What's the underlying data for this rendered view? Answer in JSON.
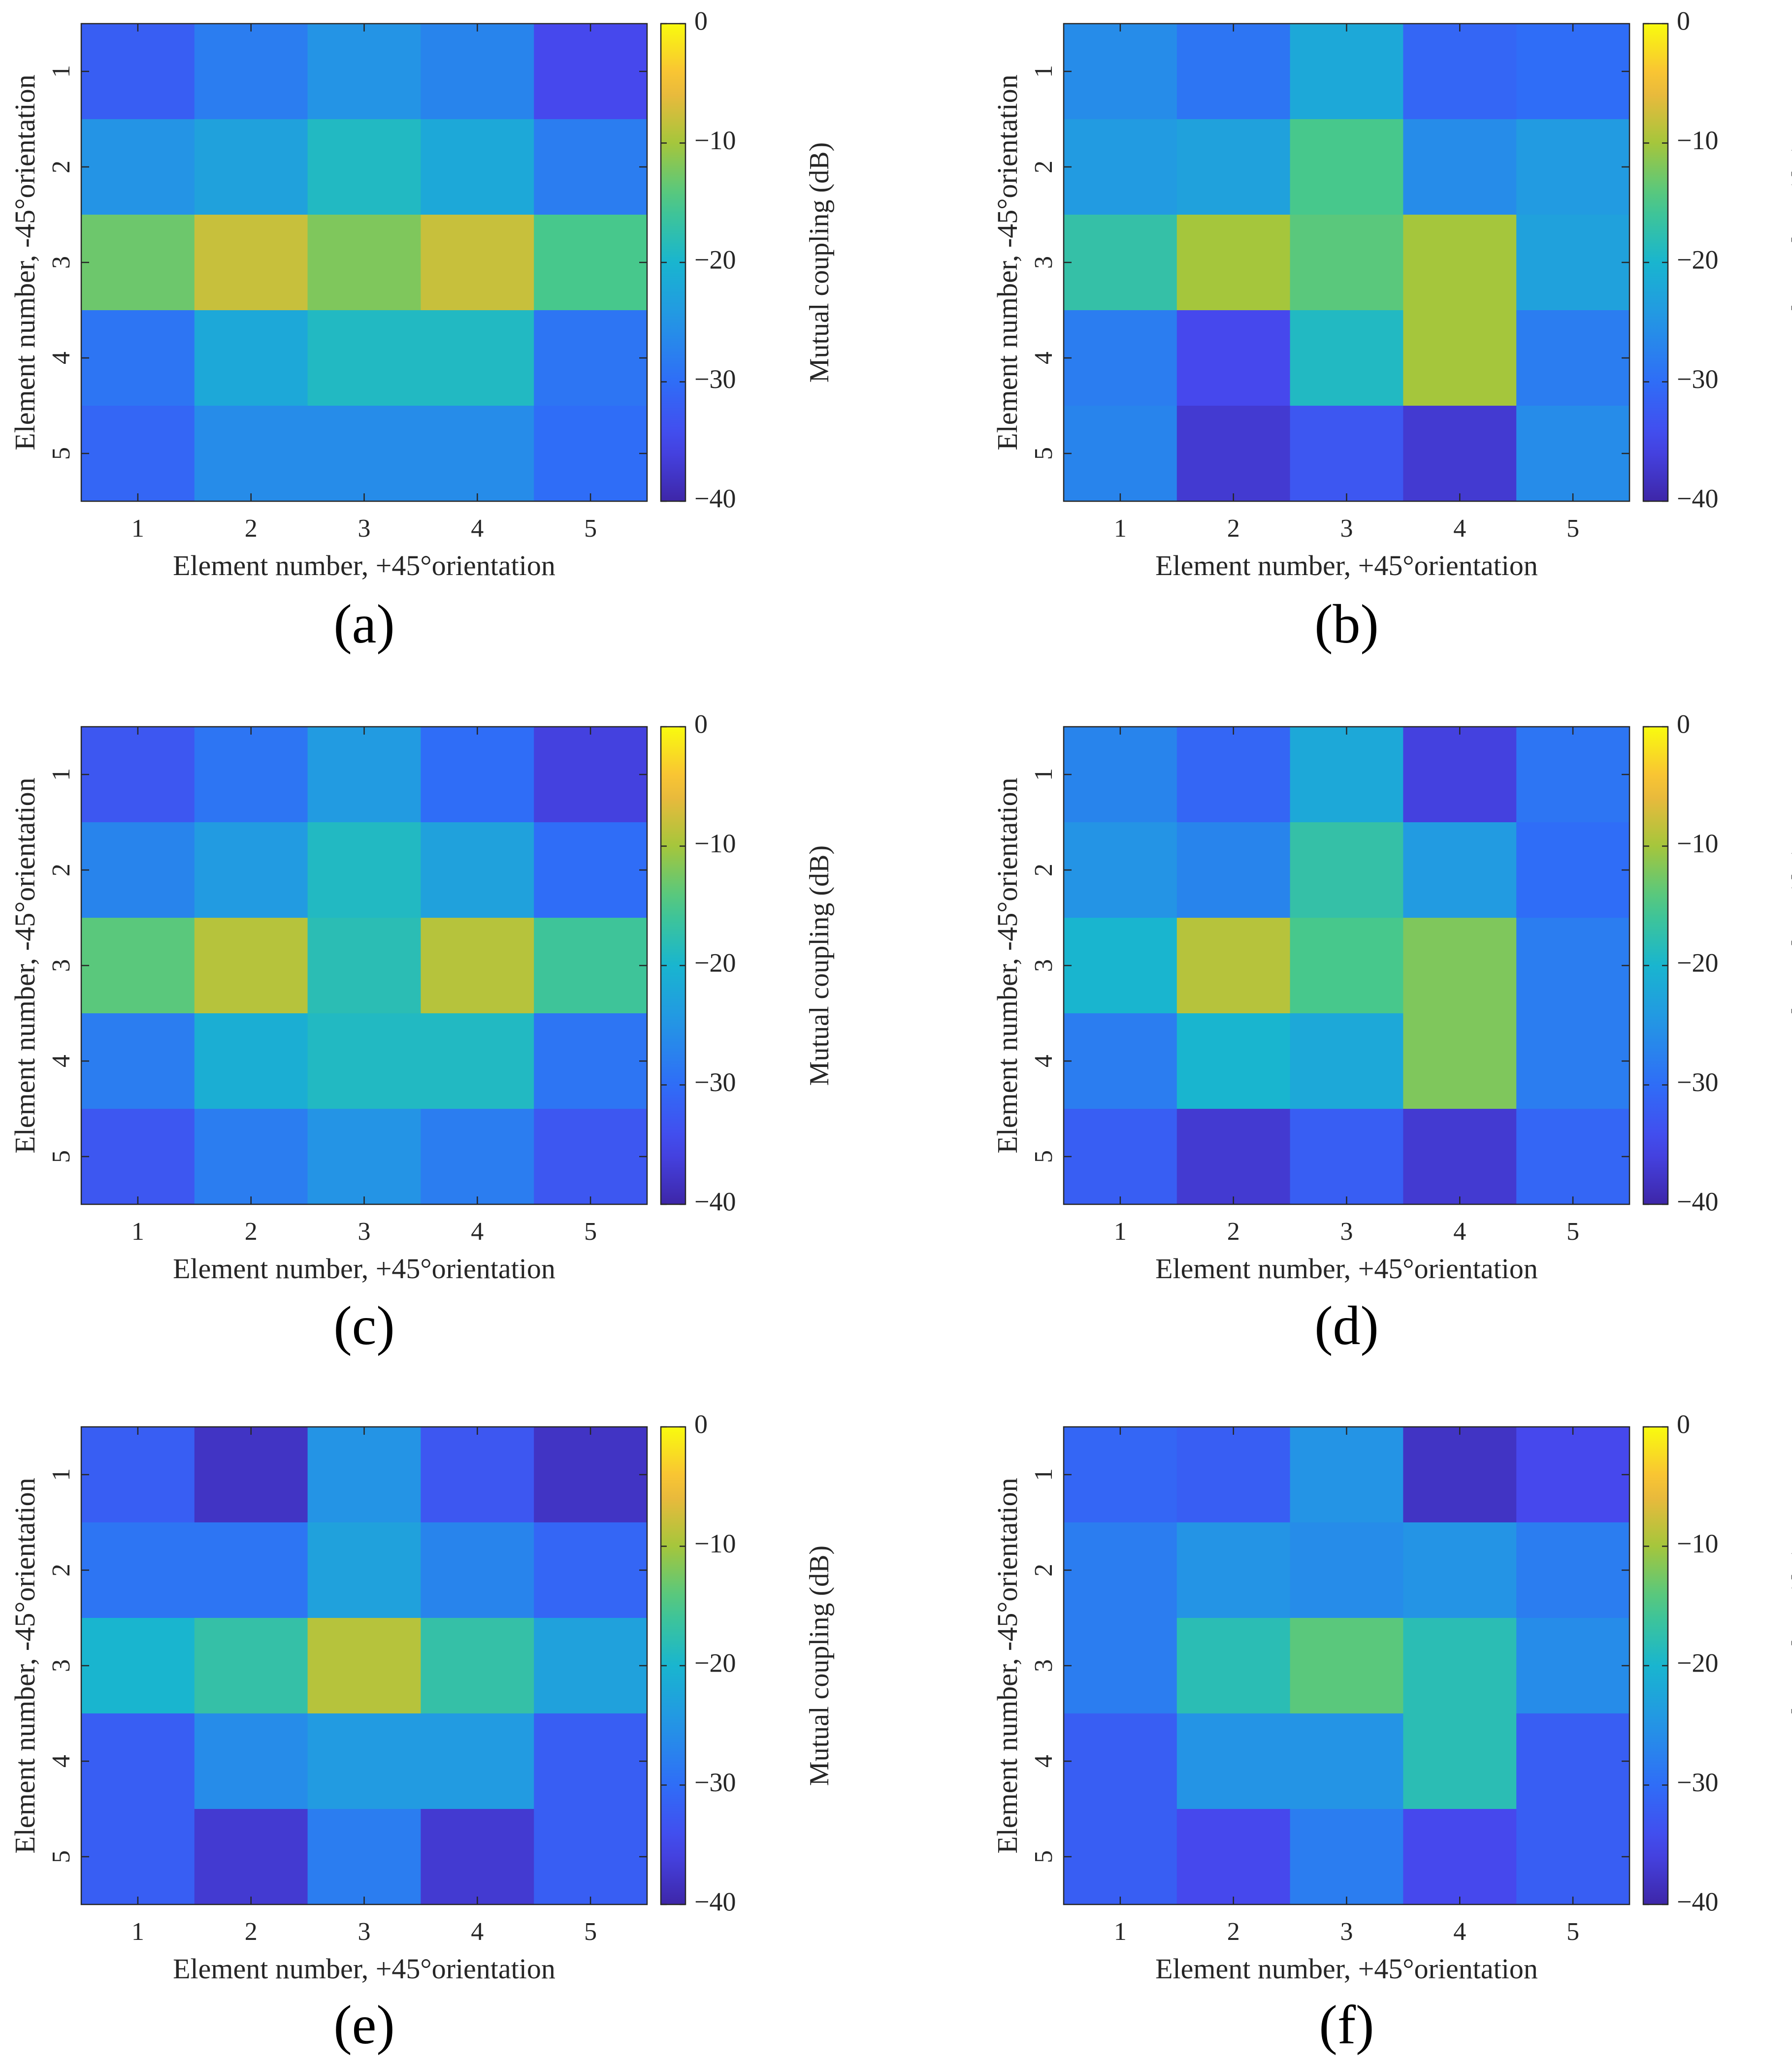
{
  "figure": {
    "colormap": "parula",
    "colors": {
      "cmap_min": "#3e26a8",
      "cmap_low": "#2f6df7",
      "cmap_mid": "#19b5cf",
      "cmap_upper": "#a5c63c",
      "cmap_orange": "#f9b73c",
      "cmap_max": "#f9fb0e",
      "axis": "#262626",
      "caption": "#000000"
    }
  },
  "chart_data": [
    {
      "type": "heatmap",
      "caption": "(a)",
      "xlabel": "Element number, +45°orientation",
      "ylabel": "Element number, -45°orientation",
      "x_ticks": [
        "1",
        "2",
        "3",
        "4",
        "5"
      ],
      "y_ticks": [
        "1",
        "2",
        "3",
        "4",
        "5"
      ],
      "colorbar": {
        "label": "Mutual coupling (dB)",
        "range": [
          -40,
          0
        ],
        "ticks": [
          "0",
          "−10",
          "−20",
          "−30",
          "−40"
        ]
      },
      "values": [
        [
          -32,
          -28,
          -25,
          -27,
          -35
        ],
        [
          -25,
          -23,
          -19,
          -22,
          -28
        ],
        [
          -13,
          -8,
          -12,
          -8,
          -15
        ],
        [
          -29,
          -22,
          -19,
          -19,
          -29
        ],
        [
          -31,
          -26,
          -26,
          -26,
          -30
        ]
      ]
    },
    {
      "type": "heatmap",
      "caption": "(b)",
      "xlabel": "Element number, +45°orientation",
      "ylabel": "Element number, -45°orientation",
      "x_ticks": [
        "1",
        "2",
        "3",
        "4",
        "5"
      ],
      "y_ticks": [
        "1",
        "2",
        "3",
        "4",
        "5"
      ],
      "colorbar": {
        "label": "Mutual coupling (dB)",
        "range": [
          -40,
          0
        ],
        "ticks": [
          "0",
          "−10",
          "−20",
          "−30",
          "−40"
        ]
      },
      "values": [
        [
          -26,
          -29,
          -22,
          -31,
          -30
        ],
        [
          -24,
          -23,
          -15,
          -26,
          -24
        ],
        [
          -17,
          -10,
          -14,
          -10,
          -23
        ],
        [
          -28,
          -35,
          -19,
          -10,
          -28
        ],
        [
          -27,
          -37,
          -33,
          -37,
          -26
        ]
      ]
    },
    {
      "type": "heatmap",
      "caption": "(c)",
      "xlabel": "Element number, +45°orientation",
      "ylabel": "Element number, -45°orientation",
      "x_ticks": [
        "1",
        "2",
        "3",
        "4",
        "5"
      ],
      "y_ticks": [
        "1",
        "2",
        "3",
        "4",
        "5"
      ],
      "colorbar": {
        "label": "Mutual coupling (dB)",
        "range": [
          -40,
          0
        ],
        "ticks": [
          "0",
          "−10",
          "−20",
          "−30",
          "−40"
        ]
      },
      "values": [
        [
          -33,
          -29,
          -24,
          -30,
          -36
        ],
        [
          -27,
          -24,
          -19,
          -23,
          -30
        ],
        [
          -14,
          -9,
          -18,
          -9,
          -16
        ],
        [
          -28,
          -21,
          -19,
          -19,
          -29
        ],
        [
          -33,
          -28,
          -25,
          -28,
          -33
        ]
      ]
    },
    {
      "type": "heatmap",
      "caption": "(d)",
      "xlabel": "Element number, +45°orientation",
      "ylabel": "Element number, -45°orientation",
      "x_ticks": [
        "1",
        "2",
        "3",
        "4",
        "5"
      ],
      "y_ticks": [
        "1",
        "2",
        "3",
        "4",
        "5"
      ],
      "colorbar": {
        "label": "Mutual coupling (dB)",
        "range": [
          -40,
          0
        ],
        "ticks": [
          "0",
          "−10",
          "−20",
          "−30",
          "−40"
        ]
      },
      "values": [
        [
          -27,
          -31,
          -22,
          -36,
          -29
        ],
        [
          -25,
          -27,
          -17,
          -24,
          -30
        ],
        [
          -20,
          -9,
          -15,
          -12,
          -28
        ],
        [
          -28,
          -20,
          -22,
          -12,
          -28
        ],
        [
          -32,
          -37,
          -32,
          -37,
          -31
        ]
      ]
    },
    {
      "type": "heatmap",
      "caption": "(e)",
      "xlabel": "Element number, +45°orientation",
      "ylabel": "Element number, -45°orientation",
      "x_ticks": [
        "1",
        "2",
        "3",
        "4",
        "5"
      ],
      "y_ticks": [
        "1",
        "2",
        "3",
        "4",
        "5"
      ],
      "colorbar": {
        "label": "Mutual coupling (dB)",
        "range": [
          -40,
          0
        ],
        "ticks": [
          "0",
          "−10",
          "−20",
          "−30",
          "−40"
        ]
      },
      "values": [
        [
          -32,
          -38,
          -25,
          -33,
          -38
        ],
        [
          -29,
          -29,
          -23,
          -27,
          -31
        ],
        [
          -20,
          -17,
          -9,
          -17,
          -23
        ],
        [
          -32,
          -26,
          -24,
          -24,
          -32
        ],
        [
          -32,
          -37,
          -28,
          -37,
          -32
        ]
      ]
    },
    {
      "type": "heatmap",
      "caption": "(f)",
      "xlabel": "Element number, +45°orientation",
      "ylabel": "Element number, -45°orientation",
      "x_ticks": [
        "1",
        "2",
        "3",
        "4",
        "5"
      ],
      "y_ticks": [
        "1",
        "2",
        "3",
        "4",
        "5"
      ],
      "colorbar": {
        "label": "Mutual coupling (dB)",
        "range": [
          -40,
          0
        ],
        "ticks": [
          "0",
          "−10",
          "−20",
          "−30",
          "−40"
        ]
      },
      "values": [
        [
          -31,
          -32,
          -25,
          -38,
          -35
        ],
        [
          -28,
          -25,
          -26,
          -25,
          -28
        ],
        [
          -28,
          -18,
          -14,
          -18,
          -26
        ],
        [
          -32,
          -25,
          -25,
          -18,
          -32
        ],
        [
          -32,
          -35,
          -28,
          -35,
          -32
        ]
      ]
    }
  ]
}
